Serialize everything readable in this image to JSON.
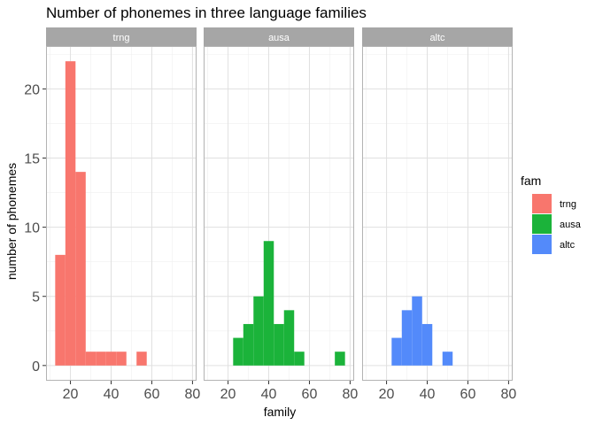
{
  "chart_data": {
    "type": "bar",
    "title": "Number of phonemes in three language families",
    "xlabel": "family",
    "ylabel": "number of phonemes",
    "xlim": [
      8,
      82
    ],
    "ylim": [
      -1.1,
      23.1
    ],
    "xticks": [
      20,
      40,
      60,
      80
    ],
    "yticks": [
      0,
      5,
      10,
      15,
      20
    ],
    "grid": true,
    "bin_width": 5,
    "legend": {
      "title": "fam",
      "placement": "right"
    },
    "facets": [
      {
        "name": "trng",
        "color": "#F8766D",
        "bins": [
          {
            "x0": 12.5,
            "x1": 17.5,
            "count": 8
          },
          {
            "x0": 17.5,
            "x1": 22.5,
            "count": 22
          },
          {
            "x0": 22.5,
            "x1": 27.5,
            "count": 14
          },
          {
            "x0": 27.5,
            "x1": 32.5,
            "count": 1
          },
          {
            "x0": 32.5,
            "x1": 37.5,
            "count": 1
          },
          {
            "x0": 37.5,
            "x1": 42.5,
            "count": 1
          },
          {
            "x0": 42.5,
            "x1": 47.5,
            "count": 1
          },
          {
            "x0": 52.5,
            "x1": 57.5,
            "count": 1
          }
        ]
      },
      {
        "name": "ausa",
        "color": "#1BB33A",
        "bins": [
          {
            "x0": 22.5,
            "x1": 27.5,
            "count": 2
          },
          {
            "x0": 27.5,
            "x1": 32.5,
            "count": 3
          },
          {
            "x0": 32.5,
            "x1": 37.5,
            "count": 5
          },
          {
            "x0": 37.5,
            "x1": 42.5,
            "count": 9
          },
          {
            "x0": 42.5,
            "x1": 47.5,
            "count": 3
          },
          {
            "x0": 47.5,
            "x1": 52.5,
            "count": 4
          },
          {
            "x0": 52.5,
            "x1": 57.5,
            "count": 1
          },
          {
            "x0": 72.5,
            "x1": 77.5,
            "count": 1
          }
        ]
      },
      {
        "name": "altc",
        "color": "#538AFA",
        "bins": [
          {
            "x0": 22.5,
            "x1": 27.5,
            "count": 2
          },
          {
            "x0": 27.5,
            "x1": 32.5,
            "count": 4
          },
          {
            "x0": 32.5,
            "x1": 37.5,
            "count": 5
          },
          {
            "x0": 37.5,
            "x1": 42.5,
            "count": 3
          },
          {
            "x0": 47.5,
            "x1": 52.5,
            "count": 1
          }
        ]
      }
    ]
  }
}
